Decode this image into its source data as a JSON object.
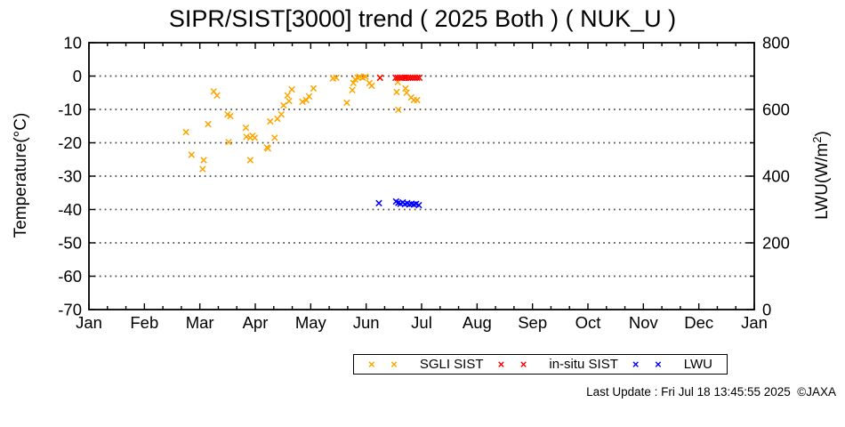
{
  "footer": "Last Update : Fri Jul 18 13:45:55 2025  ©JAXA",
  "chart_data": {
    "type": "scatter",
    "title": "SIPR/SIST[3000] trend ( 2025 Both ) ( NUK_U )",
    "legend": {
      "position": "bottom",
      "marker_sample": "× ×"
    },
    "x_axis": {
      "months": [
        "Jan",
        "Feb",
        "Mar",
        "Apr",
        "May",
        "Jun",
        "Jul",
        "Aug",
        "Sep",
        "Oct",
        "Nov",
        "Dec",
        "Jan"
      ],
      "minor_per_month": 2
    },
    "y_left": {
      "label": "Temperature(°C)",
      "range": [
        10,
        -70
      ],
      "ticks": [
        10,
        0,
        -10,
        -20,
        -30,
        -40,
        -50,
        -60,
        -70
      ],
      "gridlines": [
        0,
        -10,
        -20,
        -30,
        -40,
        -50,
        -60
      ]
    },
    "y_right": {
      "label_prefix": "LWU(W/m",
      "label_sup": "2",
      "label_suffix": ")",
      "range": [
        0,
        800
      ],
      "labeled_ticks": [
        800,
        600,
        400,
        200,
        0
      ],
      "minor_ticks": [
        700,
        500,
        300,
        100
      ]
    },
    "series": [
      {
        "name": "SGLI SIST",
        "color": "#FFA500",
        "axis": "left",
        "marker": "x",
        "points": [
          [
            1.75,
            -16.8
          ],
          [
            1.85,
            -23.6
          ],
          [
            2.05,
            -27.9
          ],
          [
            2.07,
            -25.2
          ],
          [
            2.15,
            -14.4
          ],
          [
            2.25,
            -4.6
          ],
          [
            2.31,
            -5.8
          ],
          [
            2.5,
            -11.5
          ],
          [
            2.52,
            -19.8
          ],
          [
            2.55,
            -12.0
          ],
          [
            2.83,
            -15.5
          ],
          [
            2.84,
            -18.2
          ],
          [
            2.91,
            -18.5
          ],
          [
            2.91,
            -25.2
          ],
          [
            2.95,
            -17.9
          ],
          [
            2.99,
            -18.5
          ],
          [
            3.21,
            -21.4
          ],
          [
            3.23,
            -21.7
          ],
          [
            3.27,
            -13.6
          ],
          [
            3.35,
            -18.5
          ],
          [
            3.4,
            -12.8
          ],
          [
            3.47,
            -11.5
          ],
          [
            3.51,
            -8.8
          ],
          [
            3.58,
            -5.8
          ],
          [
            3.61,
            -7.5
          ],
          [
            3.66,
            -4.0
          ],
          [
            3.85,
            -7.7
          ],
          [
            3.92,
            -7.2
          ],
          [
            3.97,
            -6.1
          ],
          [
            4.05,
            -3.7
          ],
          [
            4.4,
            -0.7
          ],
          [
            4.46,
            -0.5
          ],
          [
            4.65,
            -8.0
          ],
          [
            4.75,
            -4.2
          ],
          [
            4.77,
            -2.1
          ],
          [
            4.8,
            -1.0
          ],
          [
            4.85,
            -0.5
          ],
          [
            4.88,
            -0.2
          ],
          [
            4.94,
            -0.5
          ],
          [
            4.99,
            -0.2
          ],
          [
            5.06,
            -2.1
          ],
          [
            5.1,
            -2.9
          ],
          [
            5.25,
            -0.5
          ],
          [
            5.55,
            -4.8
          ],
          [
            5.57,
            -1.8
          ],
          [
            5.58,
            -10.1
          ],
          [
            5.71,
            -3.7
          ],
          [
            5.73,
            -5.0
          ],
          [
            5.81,
            -6.4
          ],
          [
            5.86,
            -7.2
          ],
          [
            5.92,
            -7.2
          ]
        ]
      },
      {
        "name": "in-situ SIST",
        "color": "#FF0000",
        "axis": "left",
        "marker": "x",
        "points": [
          [
            5.25,
            -0.5
          ],
          [
            5.53,
            -0.5
          ],
          [
            5.57,
            -0.5
          ],
          [
            5.61,
            -0.5
          ],
          [
            5.65,
            -0.5
          ],
          [
            5.69,
            -0.5
          ],
          [
            5.72,
            -0.5
          ],
          [
            5.76,
            -0.5
          ],
          [
            5.8,
            -0.5
          ],
          [
            5.84,
            -0.5
          ],
          [
            5.88,
            -0.5
          ],
          [
            5.92,
            -0.5
          ],
          [
            5.96,
            -0.5
          ]
        ]
      },
      {
        "name": "LWU",
        "color": "#0000FF",
        "axis": "right",
        "marker": "x",
        "points": [
          [
            5.23,
            319
          ],
          [
            5.54,
            324
          ],
          [
            5.58,
            320
          ],
          [
            5.62,
            317
          ],
          [
            5.66,
            321
          ],
          [
            5.7,
            316
          ],
          [
            5.74,
            319
          ],
          [
            5.78,
            315
          ],
          [
            5.82,
            317
          ],
          [
            5.86,
            315
          ],
          [
            5.9,
            317
          ],
          [
            5.95,
            313
          ]
        ]
      }
    ]
  }
}
